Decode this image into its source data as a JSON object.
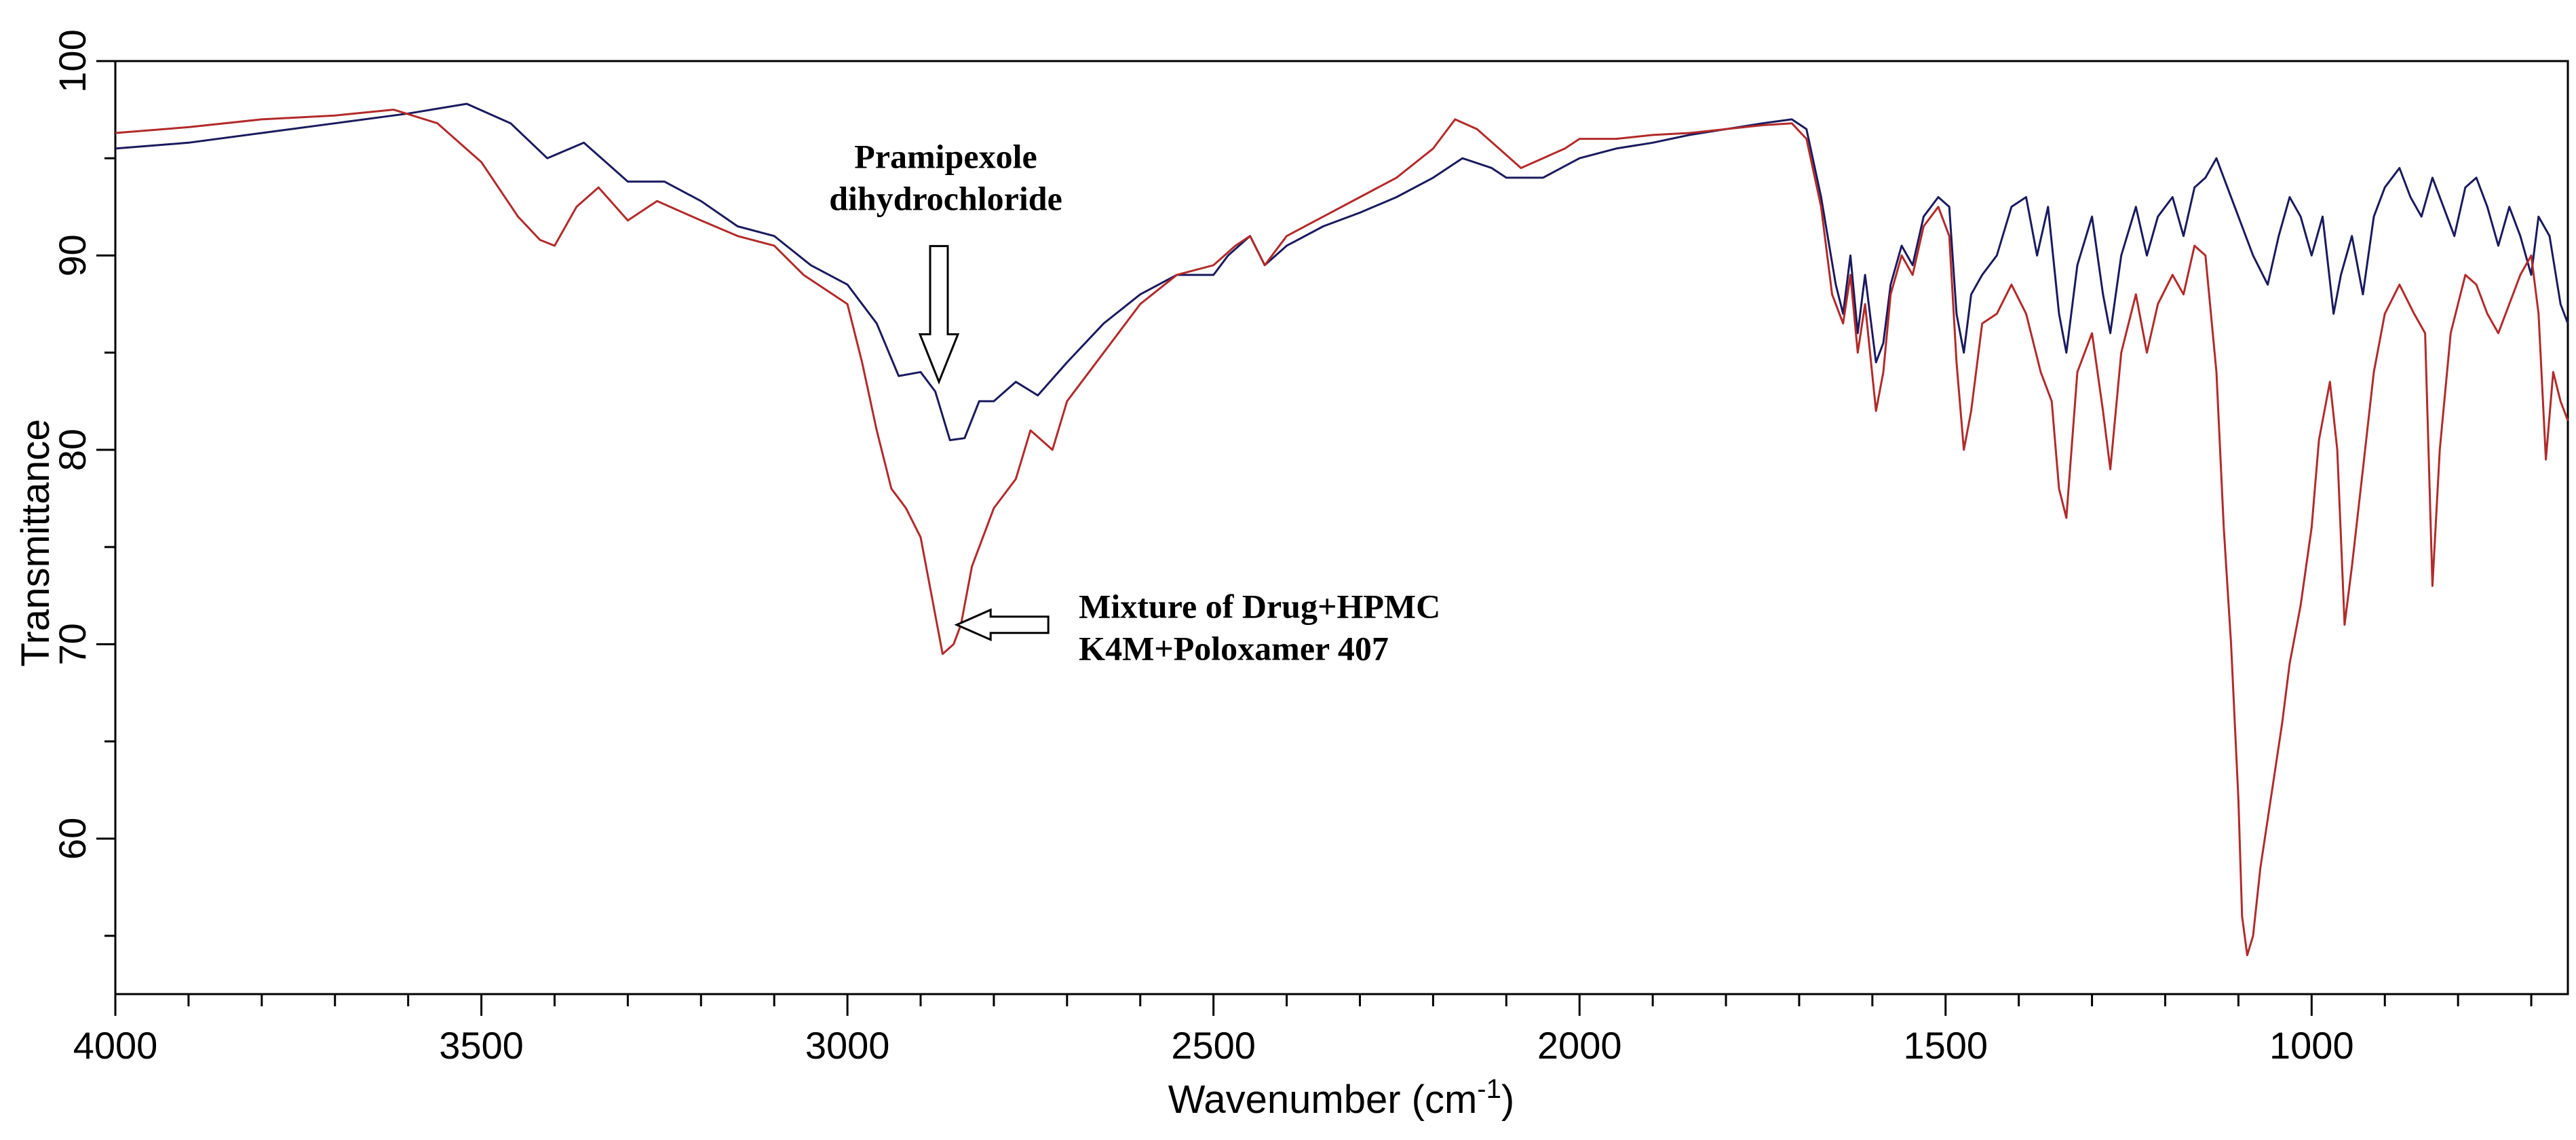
{
  "chart_data": {
    "type": "line",
    "xlabel": "Wavenumber (cm",
    "xlabel_sup": "-1",
    "xlabel_end": ")",
    "ylabel": "Transmittance",
    "xlim": [
      4000,
      650
    ],
    "ylim": [
      52,
      100
    ],
    "x_reversed": true,
    "grid": false,
    "x_ticks": [
      4000,
      3500,
      3000,
      2500,
      2000,
      1500,
      1000
    ],
    "x_tick_labels": [
      "4000",
      "3500",
      "3000",
      "2500",
      "2000",
      "1500",
      "1000"
    ],
    "y_ticks": [
      60,
      70,
      80,
      90,
      100
    ],
    "y_tick_labels": [
      "60",
      "70",
      "80",
      "90",
      "100"
    ],
    "series": [
      {
        "color": "#1a1a5e",
        "points": [
          [
            4000,
            95.5
          ],
          [
            3900,
            95.8
          ],
          [
            3800,
            96.3
          ],
          [
            3700,
            96.8
          ],
          [
            3600,
            97.3
          ],
          [
            3520,
            97.8
          ],
          [
            3460,
            96.8
          ],
          [
            3410,
            95.0
          ],
          [
            3360,
            95.8
          ],
          [
            3300,
            93.8
          ],
          [
            3250,
            93.8
          ],
          [
            3200,
            92.8
          ],
          [
            3150,
            91.5
          ],
          [
            3100,
            91.0
          ],
          [
            3050,
            89.5
          ],
          [
            3000,
            88.5
          ],
          [
            2960,
            86.5
          ],
          [
            2930,
            83.8
          ],
          [
            2900,
            84.0
          ],
          [
            2880,
            83.0
          ],
          [
            2860,
            80.5
          ],
          [
            2840,
            80.6
          ],
          [
            2820,
            82.5
          ],
          [
            2800,
            82.5
          ],
          [
            2770,
            83.5
          ],
          [
            2740,
            82.8
          ],
          [
            2700,
            84.5
          ],
          [
            2650,
            86.5
          ],
          [
            2600,
            88.0
          ],
          [
            2550,
            89.0
          ],
          [
            2500,
            89.0
          ],
          [
            2480,
            90.0
          ],
          [
            2450,
            91.0
          ],
          [
            2430,
            89.5
          ],
          [
            2400,
            90.5
          ],
          [
            2350,
            91.5
          ],
          [
            2300,
            92.2
          ],
          [
            2250,
            93.0
          ],
          [
            2200,
            94.0
          ],
          [
            2160,
            95.0
          ],
          [
            2120,
            94.5
          ],
          [
            2100,
            94.0
          ],
          [
            2050,
            94.0
          ],
          [
            2000,
            95.0
          ],
          [
            1950,
            95.5
          ],
          [
            1900,
            95.8
          ],
          [
            1850,
            96.2
          ],
          [
            1800,
            96.5
          ],
          [
            1750,
            96.8
          ],
          [
            1710,
            97.0
          ],
          [
            1690,
            96.5
          ],
          [
            1670,
            93.0
          ],
          [
            1650,
            88.5
          ],
          [
            1640,
            87.0
          ],
          [
            1630,
            90.0
          ],
          [
            1620,
            86.0
          ],
          [
            1610,
            89.0
          ],
          [
            1595,
            84.5
          ],
          [
            1585,
            85.5
          ],
          [
            1575,
            88.5
          ],
          [
            1560,
            90.5
          ],
          [
            1545,
            89.5
          ],
          [
            1530,
            92.0
          ],
          [
            1510,
            93.0
          ],
          [
            1495,
            92.5
          ],
          [
            1485,
            87.0
          ],
          [
            1475,
            85.0
          ],
          [
            1465,
            88.0
          ],
          [
            1450,
            89.0
          ],
          [
            1430,
            90.0
          ],
          [
            1410,
            92.5
          ],
          [
            1390,
            93.0
          ],
          [
            1375,
            90.0
          ],
          [
            1360,
            92.5
          ],
          [
            1345,
            87.0
          ],
          [
            1335,
            85.0
          ],
          [
            1320,
            89.5
          ],
          [
            1300,
            92.0
          ],
          [
            1285,
            88.0
          ],
          [
            1275,
            86.0
          ],
          [
            1260,
            90.0
          ],
          [
            1240,
            92.5
          ],
          [
            1225,
            90.0
          ],
          [
            1210,
            92.0
          ],
          [
            1190,
            93.0
          ],
          [
            1175,
            91.0
          ],
          [
            1160,
            93.5
          ],
          [
            1145,
            94.0
          ],
          [
            1130,
            95.0
          ],
          [
            1115,
            93.5
          ],
          [
            1100,
            92.0
          ],
          [
            1080,
            90.0
          ],
          [
            1060,
            88.5
          ],
          [
            1045,
            91.0
          ],
          [
            1030,
            93.0
          ],
          [
            1015,
            92.0
          ],
          [
            1000,
            90.0
          ],
          [
            985,
            92.0
          ],
          [
            970,
            87.0
          ],
          [
            960,
            89.0
          ],
          [
            945,
            91.0
          ],
          [
            930,
            88.0
          ],
          [
            915,
            92.0
          ],
          [
            900,
            93.5
          ],
          [
            880,
            94.5
          ],
          [
            865,
            93.0
          ],
          [
            850,
            92.0
          ],
          [
            835,
            94.0
          ],
          [
            820,
            92.5
          ],
          [
            805,
            91.0
          ],
          [
            790,
            93.5
          ],
          [
            775,
            94.0
          ],
          [
            760,
            92.5
          ],
          [
            745,
            90.5
          ],
          [
            730,
            92.5
          ],
          [
            715,
            91.0
          ],
          [
            700,
            89.0
          ],
          [
            690,
            92.0
          ],
          [
            675,
            91.0
          ],
          [
            660,
            87.5
          ],
          [
            650,
            86.5
          ]
        ]
      },
      {
        "color": "#b22a2a",
        "points": [
          [
            4000,
            96.3
          ],
          [
            3900,
            96.6
          ],
          [
            3800,
            97.0
          ],
          [
            3700,
            97.2
          ],
          [
            3620,
            97.5
          ],
          [
            3560,
            96.8
          ],
          [
            3500,
            94.8
          ],
          [
            3450,
            92.0
          ],
          [
            3420,
            90.8
          ],
          [
            3400,
            90.5
          ],
          [
            3370,
            92.5
          ],
          [
            3340,
            93.5
          ],
          [
            3300,
            91.8
          ],
          [
            3260,
            92.8
          ],
          [
            3200,
            91.8
          ],
          [
            3150,
            91.0
          ],
          [
            3100,
            90.5
          ],
          [
            3060,
            89.0
          ],
          [
            3020,
            88.0
          ],
          [
            3000,
            87.5
          ],
          [
            2980,
            84.5
          ],
          [
            2960,
            81.0
          ],
          [
            2940,
            78.0
          ],
          [
            2920,
            77.0
          ],
          [
            2900,
            75.5
          ],
          [
            2880,
            71.5
          ],
          [
            2870,
            69.5
          ],
          [
            2855,
            70.0
          ],
          [
            2845,
            71.0
          ],
          [
            2830,
            74.0
          ],
          [
            2800,
            77.0
          ],
          [
            2770,
            78.5
          ],
          [
            2750,
            81.0
          ],
          [
            2720,
            80.0
          ],
          [
            2700,
            82.5
          ],
          [
            2650,
            85.0
          ],
          [
            2600,
            87.5
          ],
          [
            2550,
            89.0
          ],
          [
            2500,
            89.5
          ],
          [
            2470,
            90.5
          ],
          [
            2450,
            91.0
          ],
          [
            2430,
            89.5
          ],
          [
            2400,
            91.0
          ],
          [
            2350,
            92.0
          ],
          [
            2300,
            93.0
          ],
          [
            2250,
            94.0
          ],
          [
            2200,
            95.5
          ],
          [
            2170,
            97.0
          ],
          [
            2140,
            96.5
          ],
          [
            2110,
            95.5
          ],
          [
            2080,
            94.5
          ],
          [
            2050,
            95.0
          ],
          [
            2020,
            95.5
          ],
          [
            2000,
            96.0
          ],
          [
            1950,
            96.0
          ],
          [
            1900,
            96.2
          ],
          [
            1850,
            96.3
          ],
          [
            1800,
            96.5
          ],
          [
            1750,
            96.7
          ],
          [
            1710,
            96.8
          ],
          [
            1690,
            96.0
          ],
          [
            1670,
            92.5
          ],
          [
            1655,
            88.0
          ],
          [
            1640,
            86.5
          ],
          [
            1630,
            89.0
          ],
          [
            1620,
            85.0
          ],
          [
            1610,
            87.5
          ],
          [
            1595,
            82.0
          ],
          [
            1585,
            84.0
          ],
          [
            1575,
            88.0
          ],
          [
            1560,
            90.0
          ],
          [
            1545,
            89.0
          ],
          [
            1530,
            91.5
          ],
          [
            1510,
            92.5
          ],
          [
            1495,
            91.0
          ],
          [
            1485,
            84.5
          ],
          [
            1475,
            80.0
          ],
          [
            1465,
            82.0
          ],
          [
            1450,
            86.5
          ],
          [
            1430,
            87.0
          ],
          [
            1410,
            88.5
          ],
          [
            1390,
            87.0
          ],
          [
            1370,
            84.0
          ],
          [
            1355,
            82.5
          ],
          [
            1345,
            78.0
          ],
          [
            1335,
            76.5
          ],
          [
            1320,
            84.0
          ],
          [
            1300,
            86.0
          ],
          [
            1285,
            82.0
          ],
          [
            1275,
            79.0
          ],
          [
            1260,
            85.0
          ],
          [
            1240,
            88.0
          ],
          [
            1225,
            85.0
          ],
          [
            1210,
            87.5
          ],
          [
            1190,
            89.0
          ],
          [
            1175,
            88.0
          ],
          [
            1160,
            90.5
          ],
          [
            1145,
            90.0
          ],
          [
            1130,
            84.0
          ],
          [
            1120,
            76.0
          ],
          [
            1110,
            70.0
          ],
          [
            1100,
            62.0
          ],
          [
            1095,
            56.0
          ],
          [
            1088,
            54.0
          ],
          [
            1080,
            55.0
          ],
          [
            1070,
            58.5
          ],
          [
            1060,
            61.0
          ],
          [
            1050,
            63.5
          ],
          [
            1040,
            66.0
          ],
          [
            1030,
            69.0
          ],
          [
            1015,
            72.0
          ],
          [
            1000,
            76.0
          ],
          [
            990,
            80.5
          ],
          [
            975,
            83.5
          ],
          [
            965,
            80.0
          ],
          [
            955,
            71.0
          ],
          [
            945,
            74.0
          ],
          [
            930,
            79.0
          ],
          [
            915,
            84.0
          ],
          [
            900,
            87.0
          ],
          [
            880,
            88.5
          ],
          [
            860,
            87.0
          ],
          [
            845,
            86.0
          ],
          [
            835,
            73.0
          ],
          [
            825,
            80.0
          ],
          [
            810,
            86.0
          ],
          [
            790,
            89.0
          ],
          [
            775,
            88.5
          ],
          [
            760,
            87.0
          ],
          [
            745,
            86.0
          ],
          [
            730,
            87.5
          ],
          [
            715,
            89.0
          ],
          [
            700,
            90.0
          ],
          [
            690,
            87.0
          ],
          [
            680,
            79.5
          ],
          [
            670,
            84.0
          ],
          [
            660,
            82.5
          ],
          [
            650,
            81.5
          ]
        ]
      }
    ],
    "annotations": [
      {
        "lines": [
          "Pramipexole",
          "dihydrochloride"
        ],
        "arrow": "down",
        "x": 2875,
        "y": 83.5
      },
      {
        "lines": [
          "Mixture of Drug+HPMC",
          "K4M+Poloxamer 407"
        ],
        "arrow": "left",
        "x": 2860,
        "y": 71.0
      }
    ]
  }
}
